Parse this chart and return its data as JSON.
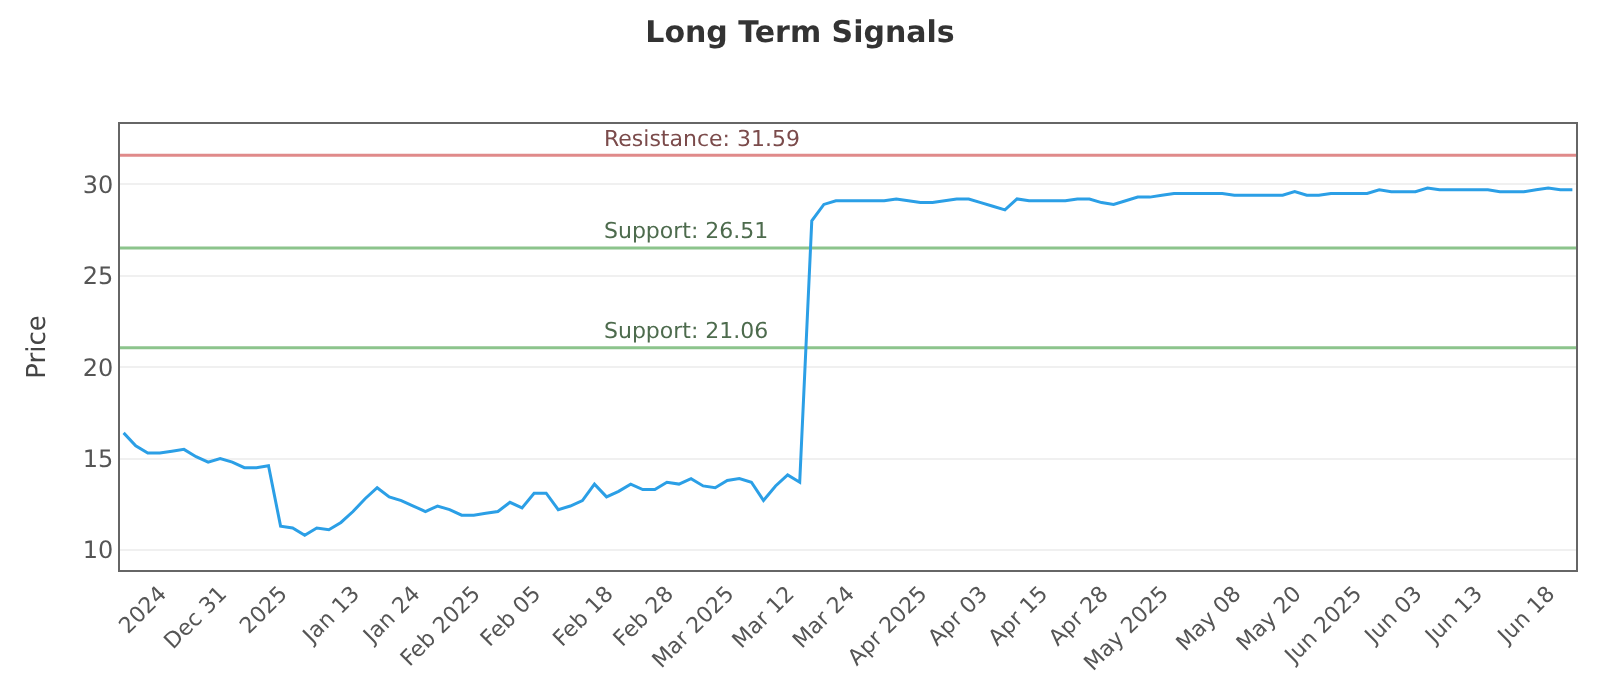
{
  "chart_data": {
    "type": "line",
    "title": "Long Term Signals",
    "ylabel": "Price",
    "categories": [
      null,
      null,
      null,
      "2024",
      null,
      null,
      null,
      null,
      "Dec 31",
      null,
      null,
      null,
      null,
      "2025",
      null,
      null,
      null,
      null,
      null,
      "Jan 13",
      null,
      null,
      null,
      null,
      "Jan 24",
      null,
      null,
      null,
      null,
      "Feb 2025",
      null,
      null,
      null,
      null,
      "Feb 05",
      null,
      null,
      null,
      null,
      null,
      "Feb 18",
      null,
      null,
      null,
      null,
      "Feb 28",
      null,
      null,
      null,
      null,
      "Mar 2025",
      null,
      null,
      null,
      null,
      "Mar 12",
      null,
      null,
      null,
      null,
      "Mar 24",
      null,
      null,
      null,
      null,
      null,
      "Apr 2025",
      null,
      null,
      null,
      null,
      "Apr 03",
      null,
      null,
      null,
      null,
      "Apr 15",
      null,
      null,
      null,
      null,
      "Apr 28",
      null,
      null,
      null,
      null,
      "May 2025",
      null,
      null,
      null,
      null,
      null,
      "May 08",
      null,
      null,
      null,
      null,
      "May 20",
      null,
      null,
      null,
      null,
      "Jun 2025",
      null,
      null,
      null,
      null,
      "Jun 03",
      null,
      null,
      null,
      null,
      "Jun 13",
      null,
      null,
      null,
      null,
      null,
      "Jun 18",
      null,
      null
    ],
    "series": [
      {
        "color": "#2b9fe6",
        "values": [
          16.4,
          15.7,
          15.3,
          15.3,
          15.4,
          15.5,
          15.1,
          14.8,
          15.0,
          14.8,
          14.5,
          14.5,
          14.6,
          11.3,
          11.2,
          10.8,
          11.2,
          11.1,
          11.5,
          12.1,
          12.8,
          13.4,
          12.9,
          12.7,
          12.4,
          12.1,
          12.4,
          12.2,
          11.9,
          11.9,
          12.0,
          12.1,
          12.6,
          12.3,
          13.1,
          13.1,
          12.2,
          12.4,
          12.7,
          13.6,
          12.9,
          13.2,
          13.6,
          13.3,
          13.3,
          13.7,
          13.6,
          13.9,
          13.5,
          13.4,
          13.8,
          13.9,
          13.7,
          12.7,
          13.5,
          14.1,
          13.7,
          28.0,
          28.9,
          29.1,
          29.1,
          29.1,
          29.1,
          29.1,
          29.2,
          29.1,
          29.0,
          29.0,
          29.1,
          29.2,
          29.2,
          29.0,
          28.8,
          28.6,
          29.2,
          29.1,
          29.1,
          29.1,
          29.1,
          29.2,
          29.2,
          29.0,
          28.9,
          29.1,
          29.3,
          29.3,
          29.4,
          29.5,
          29.5,
          29.5,
          29.5,
          29.5,
          29.4,
          29.4,
          29.4,
          29.4,
          29.4,
          29.6,
          29.4,
          29.4,
          29.5,
          29.5,
          29.5,
          29.5,
          29.7,
          29.6,
          29.6,
          29.6,
          29.8,
          29.7,
          29.7,
          29.7,
          29.7,
          29.7,
          29.6,
          29.6,
          29.6,
          29.7,
          29.8,
          29.7,
          29.7
        ]
      }
    ],
    "ylim": [
      8.9,
      33.3
    ],
    "yticks": [
      10,
      15,
      20,
      25,
      30
    ],
    "grid": "y",
    "marker": "none",
    "line_style": "solid",
    "ref_lines": [
      {
        "axis": "y",
        "value": 31.59,
        "label": "Resistance: 31.59",
        "color": "#e08a8a"
      },
      {
        "axis": "y",
        "value": 26.51,
        "label": "Support: 26.51",
        "color": "#8cc48c"
      },
      {
        "axis": "y",
        "value": 21.06,
        "label": "Support: 21.06",
        "color": "#8cc48c"
      }
    ]
  }
}
